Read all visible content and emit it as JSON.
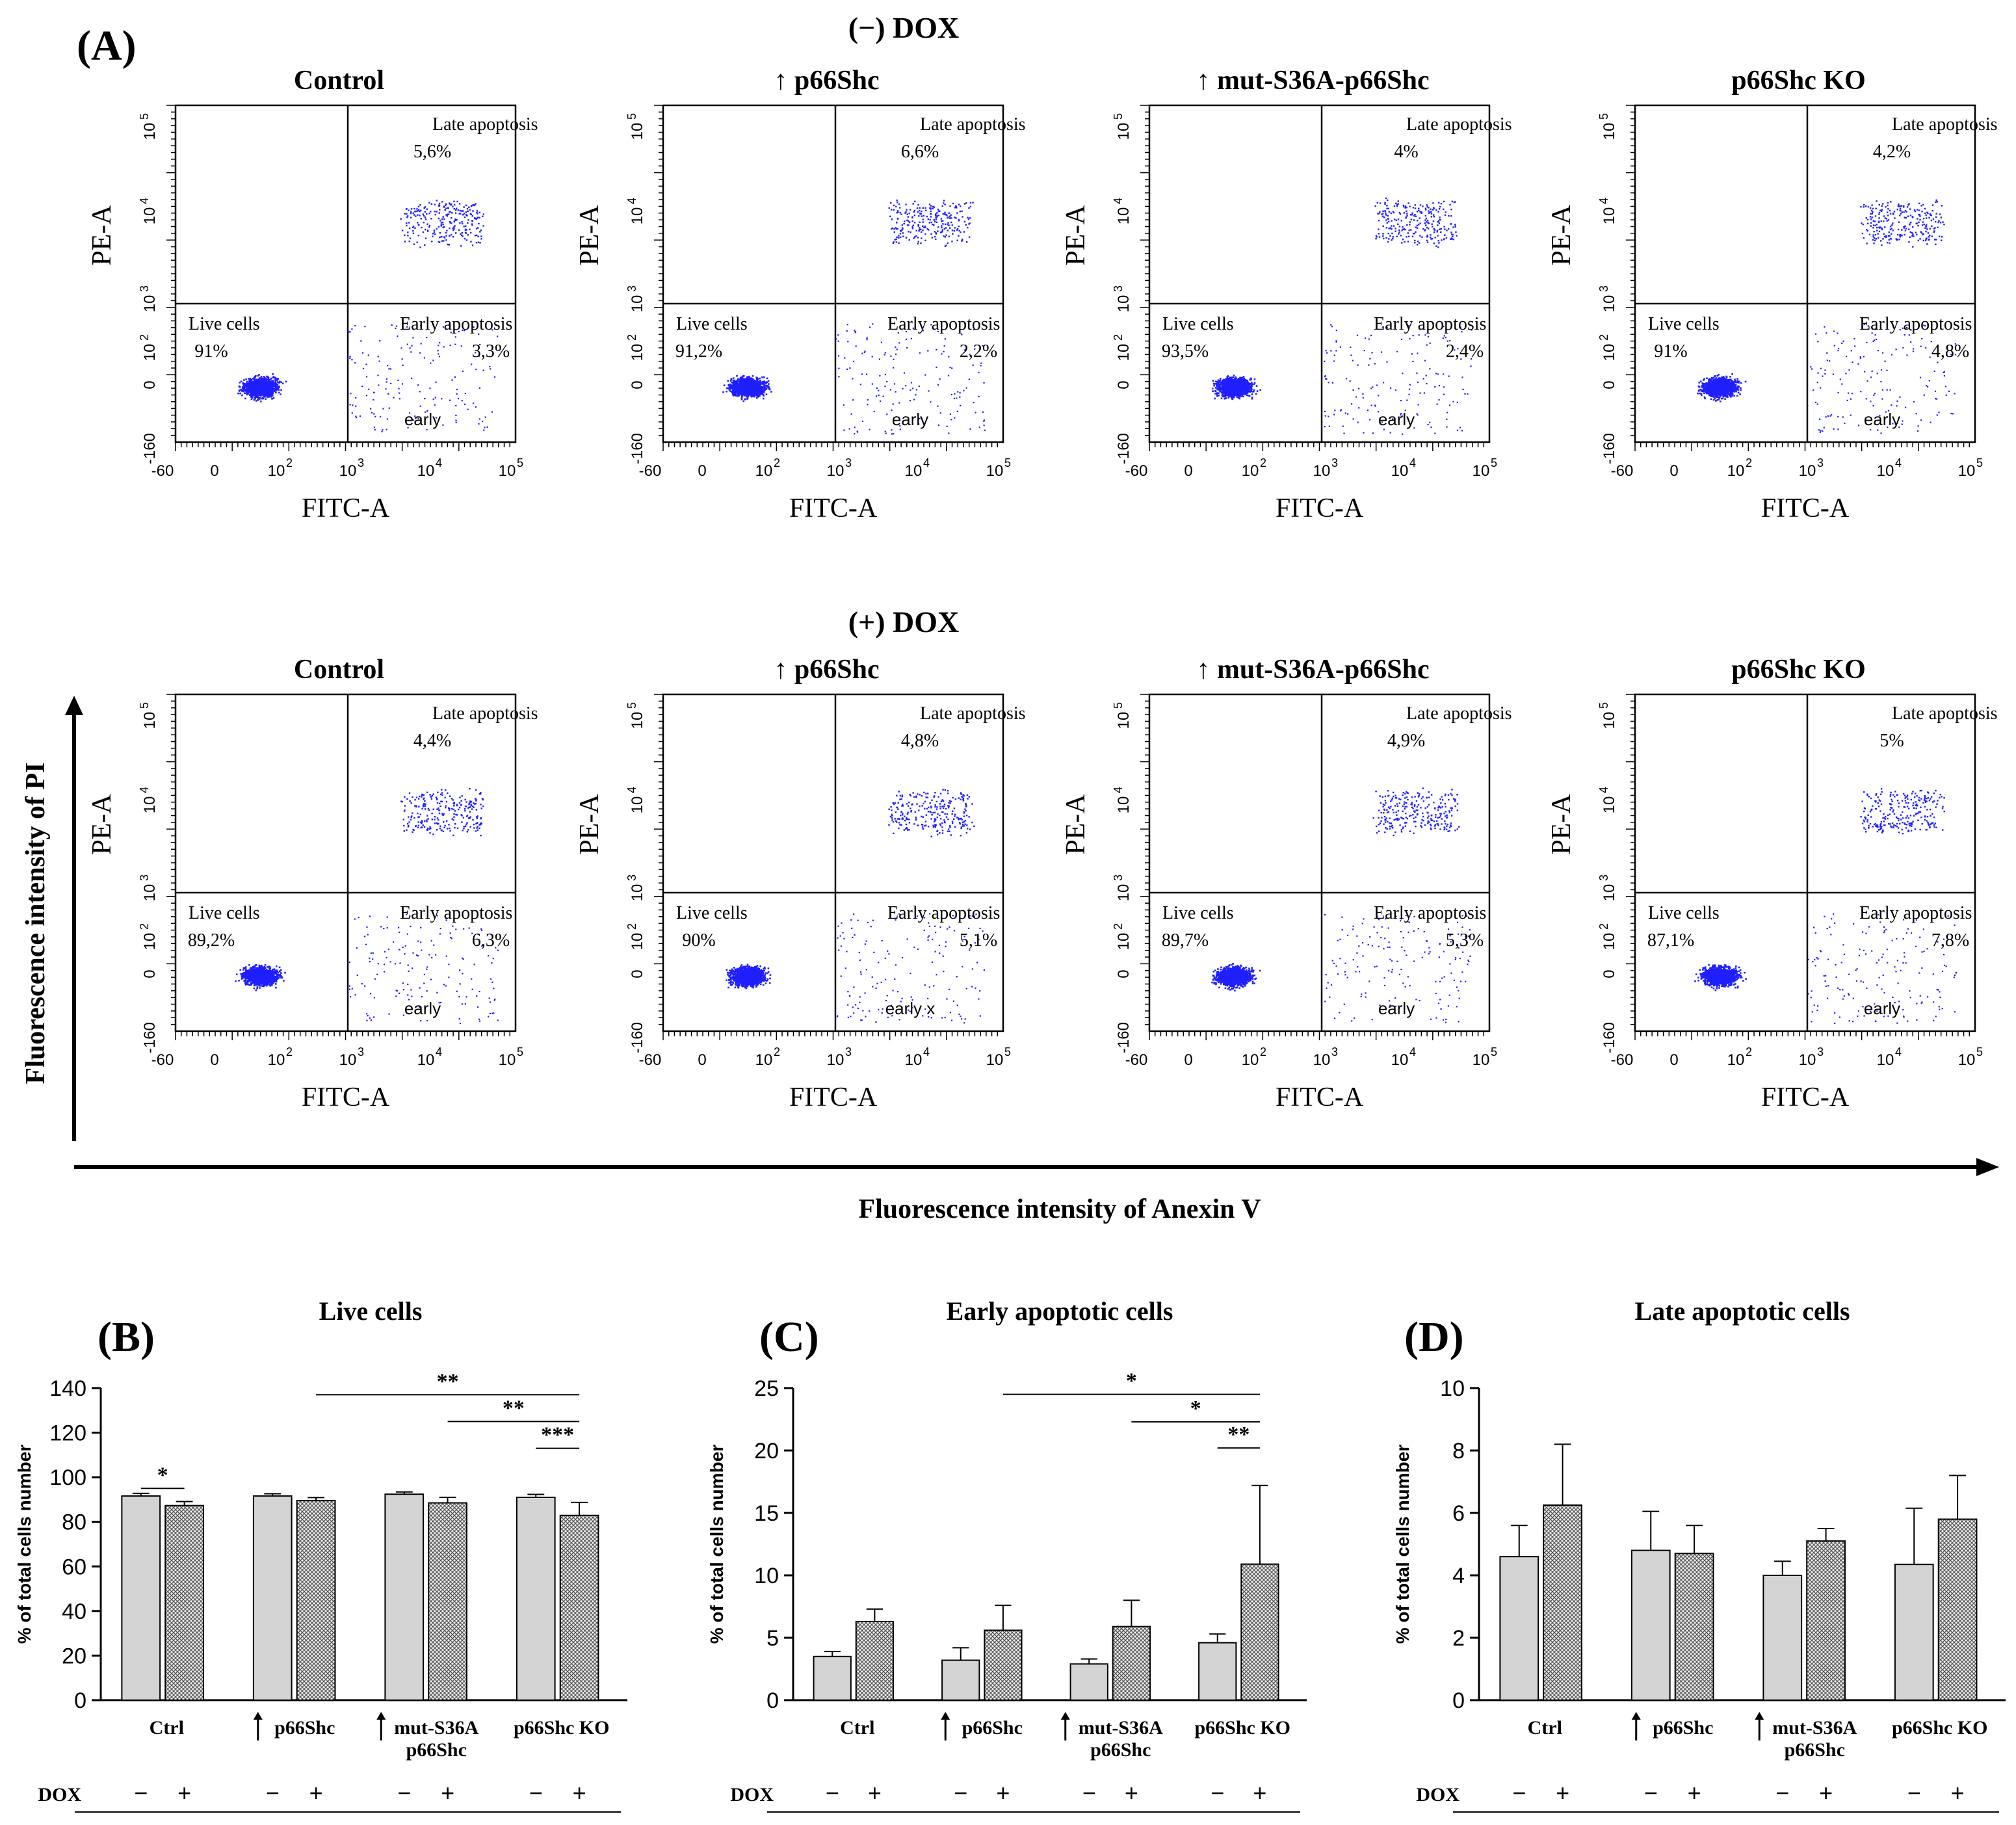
{
  "figure": {
    "panel_a_label": "(A)",
    "panel_b_label": "(B)",
    "panel_c_label": "(C)",
    "panel_d_label": "(D)",
    "row_minus_title": "(−) DOX",
    "row_plus_title": "(+) DOX",
    "y_global_label": "Fluorescence intensity of PI",
    "x_global_label": "Fluorescence intensity of Anexin V"
  },
  "flow": {
    "x_axis_label": "FITC-A",
    "y_axis_label": "PE-A",
    "x_ticks": [
      {
        "e": "-60",
        "p": ""
      },
      {
        "e": "0",
        "p": ""
      },
      {
        "e": "10",
        "p": "2"
      },
      {
        "e": "10",
        "p": "3"
      },
      {
        "e": "10",
        "p": "4"
      },
      {
        "e": "10",
        "p": "5"
      }
    ],
    "y_ticks": [
      {
        "e": "-160",
        "p": ""
      },
      {
        "e": "0",
        "p": ""
      },
      {
        "e": "10",
        "p": "2"
      },
      {
        "e": "10",
        "p": "3"
      },
      {
        "e": "10",
        "p": "4"
      },
      {
        "e": "10",
        "p": "5"
      }
    ],
    "quadrant_labels": {
      "late": "Late apoptosis",
      "live": "Live cells",
      "early_apoptosis": "Early apoptosis",
      "early_gate": "early"
    },
    "dot_color": "#1f1fff",
    "plots": [
      {
        "row": "minus",
        "title": "Control",
        "live": "91%",
        "early": "3,3%",
        "late": "5,6%",
        "gate_text": "early"
      },
      {
        "row": "minus",
        "title": "↑ p66Shc",
        "live": "91,2%",
        "early": "2,2%",
        "late": "6,6%",
        "gate_text": "early"
      },
      {
        "row": "minus",
        "title": "↑ mut-S36A-p66Shc",
        "live": "93,5%",
        "early": "2,4%",
        "late": "4%",
        "gate_text": "early"
      },
      {
        "row": "minus",
        "title": "p66Shc KO",
        "live": "91%",
        "early": "4,8%",
        "late": "4,2%",
        "gate_text": "early"
      },
      {
        "row": "plus",
        "title": "Control",
        "live": "89,2%",
        "early": "6,3%",
        "late": "4,4%",
        "gate_text": "early"
      },
      {
        "row": "plus",
        "title": "↑ p66Shc",
        "live": "90%",
        "early": "5,1%",
        "late": "4,8%",
        "gate_text": "early x"
      },
      {
        "row": "plus",
        "title": "↑ mut-S36A-p66Shc",
        "live": "89,7%",
        "early": "5,3%",
        "late": "4,9%",
        "gate_text": "early"
      },
      {
        "row": "plus",
        "title": "p66Shc KO",
        "live": "87,1%",
        "early": "7,8%",
        "late": "5%",
        "gate_text": "early"
      }
    ]
  },
  "chart_data": [
    {
      "type": "bar",
      "panel": "(B)",
      "title": "Live cells",
      "ylabel": "% of total cells number",
      "ylim": [
        0,
        140
      ],
      "yticks": [
        0,
        20,
        40,
        60,
        80,
        100,
        120,
        140
      ],
      "categories": [
        "Ctrl",
        "p66Shc",
        "mut-S36A p66Shc",
        "p66Shc KO"
      ],
      "category_arrows": [
        false,
        true,
        true,
        false
      ],
      "dox_row_label": "DOX",
      "series": [
        {
          "name": "− DOX",
          "sign": "−",
          "values": [
            91.6,
            91.6,
            92.4,
            91.0
          ],
          "errors": [
            1.2,
            1.0,
            1.0,
            1.3
          ]
        },
        {
          "name": "+ DOX",
          "sign": "+",
          "values": [
            87.3,
            89.5,
            88.5,
            82.9
          ],
          "errors": [
            1.8,
            1.4,
            2.5,
            5.8
          ]
        }
      ],
      "significance": [
        {
          "from": [
            0,
            0
          ],
          "to": [
            0,
            1
          ],
          "label": "*",
          "level": 95
        },
        {
          "from": [
            1,
            1
          ],
          "to": [
            3,
            1
          ],
          "label": "**",
          "level": 137
        },
        {
          "from": [
            2,
            1
          ],
          "to": [
            3,
            1
          ],
          "label": "**",
          "level": 125
        },
        {
          "from": [
            3,
            0
          ],
          "to": [
            3,
            1
          ],
          "label": "***",
          "level": 113
        }
      ]
    },
    {
      "type": "bar",
      "panel": "(C)",
      "title": "Early apoptotic cells",
      "ylabel": "% of total cells number",
      "ylim": [
        0,
        25
      ],
      "yticks": [
        0,
        5,
        10,
        15,
        20,
        25
      ],
      "categories": [
        "Ctrl",
        "p66Shc",
        "mut-S36A p66Shc",
        "p66Shc KO"
      ],
      "category_arrows": [
        false,
        true,
        true,
        false
      ],
      "dox_row_label": "DOX",
      "series": [
        {
          "name": "− DOX",
          "sign": "−",
          "values": [
            3.5,
            3.2,
            2.9,
            4.6
          ],
          "errors": [
            0.4,
            1.0,
            0.4,
            0.7
          ]
        },
        {
          "name": "+ DOX",
          "sign": "+",
          "values": [
            6.3,
            5.6,
            5.9,
            10.9
          ],
          "errors": [
            1.0,
            2.0,
            2.1,
            6.3
          ]
        }
      ],
      "significance": [
        {
          "from": [
            1,
            1
          ],
          "to": [
            3,
            1
          ],
          "label": "*",
          "level": 24.5
        },
        {
          "from": [
            2,
            1
          ],
          "to": [
            3,
            1
          ],
          "label": "*",
          "level": 22.3
        },
        {
          "from": [
            3,
            0
          ],
          "to": [
            3,
            1
          ],
          "label": "**",
          "level": 20.2
        }
      ]
    },
    {
      "type": "bar",
      "panel": "(D)",
      "title": "Late apoptotic cells",
      "ylabel": "% of total cells number",
      "ylim": [
        0,
        10
      ],
      "yticks": [
        0,
        2,
        4,
        6,
        8,
        10
      ],
      "categories": [
        "Ctrl",
        "p66Shc",
        "mut-S36A p66Shc",
        "p66Shc KO"
      ],
      "category_arrows": [
        false,
        true,
        true,
        false
      ],
      "dox_row_label": "DOX",
      "series": [
        {
          "name": "− DOX",
          "sign": "−",
          "values": [
            4.6,
            4.8,
            4.0,
            4.35
          ],
          "errors": [
            1.0,
            1.25,
            0.45,
            1.8
          ]
        },
        {
          "name": "+ DOX",
          "sign": "+",
          "values": [
            6.25,
            4.7,
            5.1,
            5.8
          ],
          "errors": [
            1.95,
            0.9,
            0.4,
            1.4
          ]
        }
      ],
      "significance": []
    }
  ],
  "colors": {
    "bar_minus_fill": "#d4d4d4",
    "bar_plus_hatch": "#555555",
    "axis": "#000000"
  }
}
